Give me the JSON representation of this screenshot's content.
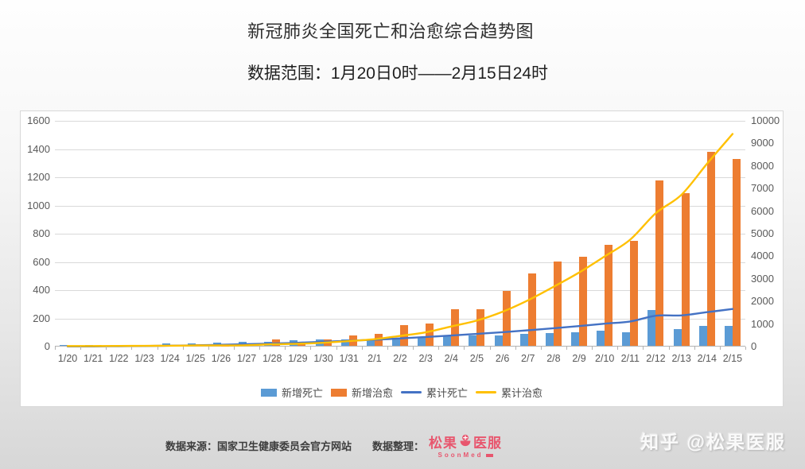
{
  "page": {
    "title": "新冠肺炎全国死亡和治愈综合趋势图",
    "subtitle": "数据范围：1月20日0时——2月15日24时",
    "watermark": "知乎 @松果医服"
  },
  "footer": {
    "source": "数据来源：国家卫生健康委员会官方网站",
    "curation": "数据整理：",
    "brand_cn_left": "松果",
    "brand_cn_right": "医服",
    "brand_en": "SoonMed",
    "brand_color": "#e8566e"
  },
  "chart_data": {
    "type": "combo-bar-line-dual-axis",
    "title": "新冠肺炎全国死亡和治愈综合趋势图",
    "grid": true,
    "legend_position": "bottom",
    "categories": [
      "1/20",
      "1/21",
      "1/22",
      "1/23",
      "1/24",
      "1/25",
      "1/26",
      "1/27",
      "1/28",
      "1/29",
      "1/30",
      "1/31",
      "2/1",
      "2/2",
      "2/3",
      "2/4",
      "2/5",
      "2/6",
      "2/7",
      "2/8",
      "2/9",
      "2/10",
      "2/11",
      "2/12",
      "2/13",
      "2/14",
      "2/15"
    ],
    "left_axis": {
      "min": 0,
      "max": 1600,
      "step": 200,
      "tick_labels": [
        "0",
        "200",
        "400",
        "600",
        "800",
        "1000",
        "1200",
        "1400",
        "1600"
      ]
    },
    "right_axis": {
      "min": 0,
      "max": 10000,
      "step": 1000,
      "tick_labels": [
        "0",
        "1000",
        "2000",
        "3000",
        "4000",
        "5000",
        "6000",
        "7000",
        "8000",
        "9000",
        "10000"
      ]
    },
    "series": [
      {
        "id": "new-deaths",
        "name": "新增死亡",
        "type": "bar",
        "axis": "left",
        "color": "#5b9bd5",
        "values": [
          3,
          3,
          8,
          8,
          16,
          15,
          24,
          26,
          26,
          38,
          43,
          46,
          45,
          57,
          64,
          65,
          73,
          73,
          86,
          89,
          97,
          108,
          97,
          254,
          121,
          143,
          142
        ]
      },
      {
        "id": "new-cured",
        "name": "新增治愈",
        "type": "bar",
        "axis": "left",
        "color": "#ed7d31",
        "values": [
          0,
          0,
          3,
          6,
          4,
          11,
          2,
          9,
          43,
          21,
          47,
          72,
          85,
          147,
          157,
          260,
          261,
          387,
          510,
          600,
          632,
          716,
          744,
          1171,
          1081,
          1373,
          1323
        ]
      },
      {
        "id": "cum-deaths",
        "name": "累计死亡",
        "type": "line",
        "axis": "right",
        "color": "#4472c4",
        "values": [
          6,
          9,
          17,
          25,
          41,
          56,
          80,
          106,
          132,
          170,
          213,
          259,
          304,
          361,
          425,
          490,
          563,
          636,
          722,
          811,
          908,
          1016,
          1113,
          1367,
          1380,
          1523,
          1665
        ]
      },
      {
        "id": "cum-cured",
        "name": "累计治愈",
        "type": "line",
        "axis": "right",
        "color": "#ffc000",
        "values": [
          25,
          25,
          28,
          34,
          38,
          49,
          51,
          60,
          103,
          124,
          171,
          243,
          328,
          475,
          632,
          892,
          1153,
          1540,
          2050,
          2649,
          3281,
          3996,
          4740,
          5911,
          6723,
          8096,
          9419
        ]
      }
    ]
  }
}
